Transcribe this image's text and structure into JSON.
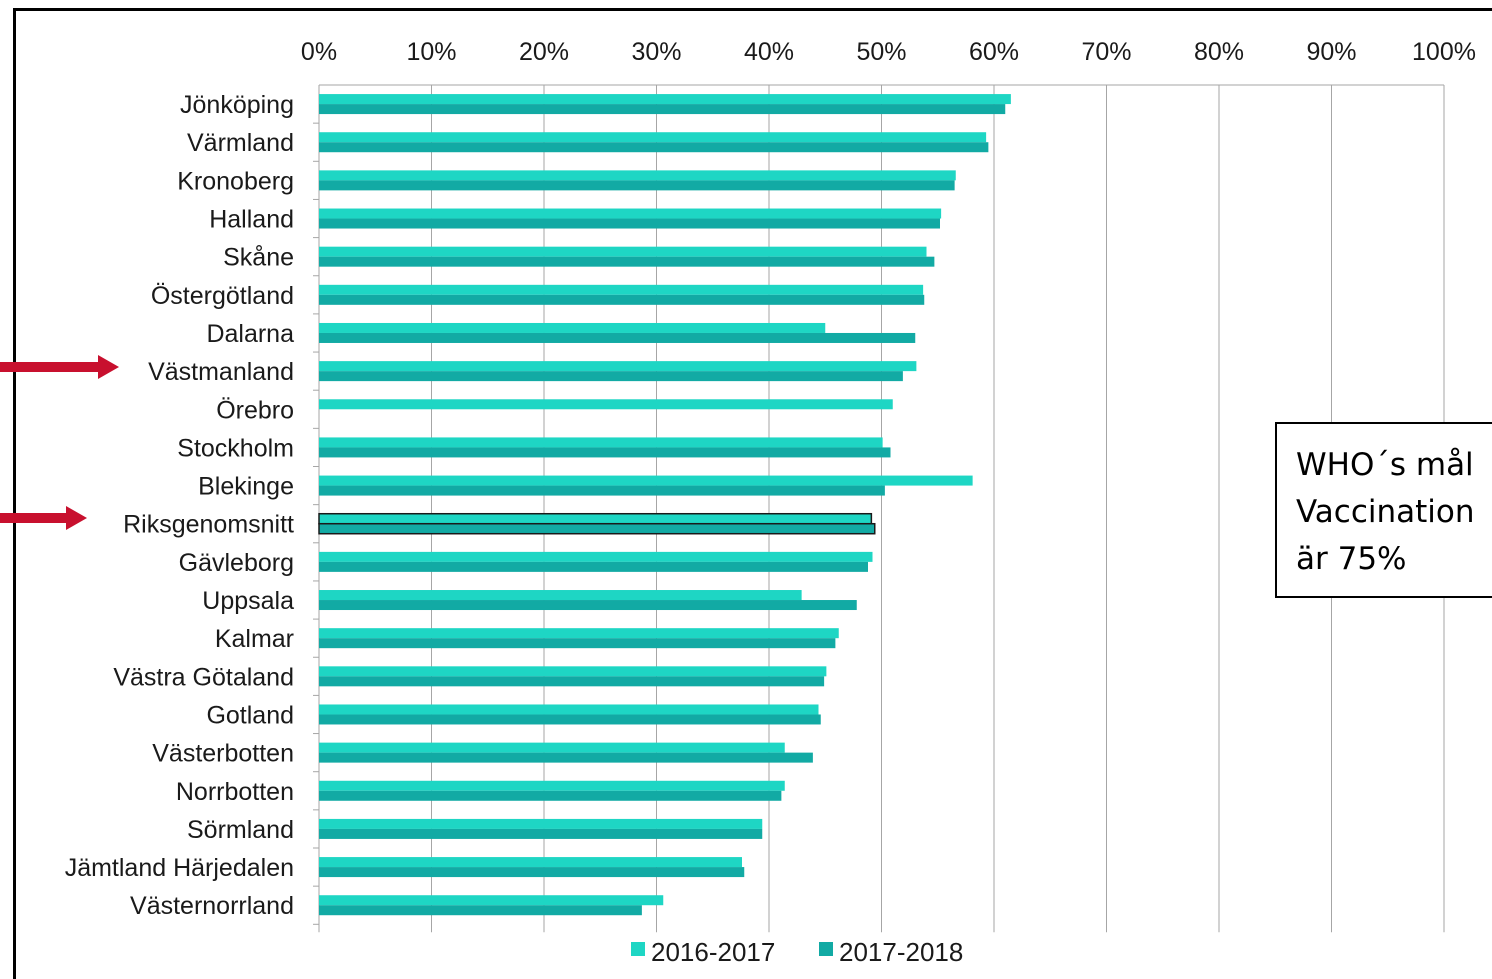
{
  "chart_data": {
    "type": "bar",
    "orientation": "horizontal",
    "xlim": [
      0,
      100
    ],
    "x_ticks": [
      "0%",
      "10%",
      "20%",
      "30%",
      "40%",
      "50%",
      "60%",
      "70%",
      "80%",
      "90%",
      "100%"
    ],
    "grid": "vertical",
    "legend_position": "bottom",
    "categories": [
      "Jönköping",
      "Värmland",
      "Kronoberg",
      "Halland",
      "Skåne",
      "Östergötland",
      "Dalarna",
      "Västmanland",
      "Örebro",
      "Stockholm",
      "Blekinge",
      "Riksgenomsnitt",
      "Gävleborg",
      "Uppsala",
      "Kalmar",
      "Västra Götaland",
      "Gotland",
      "Västerbotten",
      "Norrbotten",
      "Sörmland",
      "Jämtland Härjedalen",
      "Västernorrland"
    ],
    "series": [
      {
        "name": "2016-2017",
        "color": "#1ed6c4",
        "values": [
          61.5,
          59.3,
          56.6,
          55.3,
          54.0,
          53.7,
          45.0,
          53.1,
          51.0,
          50.1,
          58.1,
          49.1,
          49.2,
          42.9,
          46.2,
          45.1,
          44.4,
          41.4,
          41.4,
          39.4,
          37.6,
          30.6
        ]
      },
      {
        "name": "2017-2018",
        "color": "#12aaa4",
        "values": [
          61.0,
          59.5,
          56.5,
          55.2,
          54.7,
          53.8,
          53.0,
          51.9,
          null,
          50.8,
          50.3,
          49.4,
          48.8,
          47.8,
          45.9,
          44.9,
          44.6,
          43.9,
          41.1,
          39.4,
          37.8,
          28.7
        ]
      }
    ],
    "highlighted_categories": [
      "Västmanland",
      "Riksgenomsnitt"
    ],
    "annotation": [
      "WHO´s mål",
      "Vaccination",
      "är 75%"
    ]
  }
}
